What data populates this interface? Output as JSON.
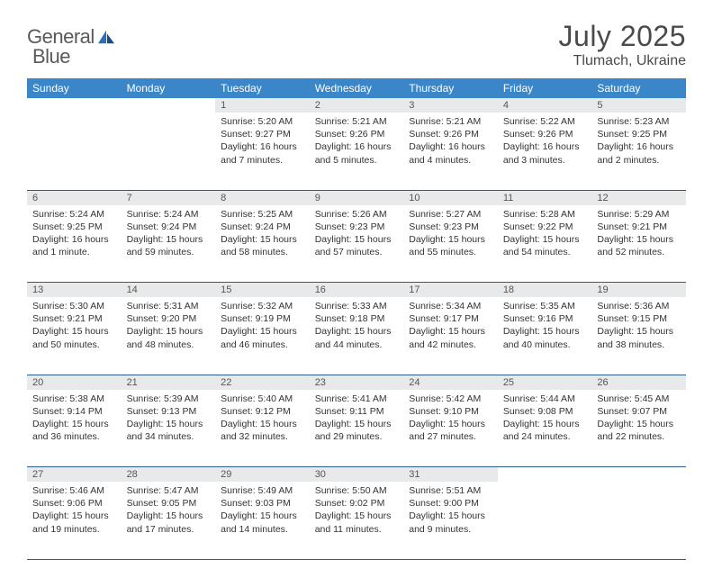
{
  "brand": {
    "word1": "General",
    "word2": "Blue"
  },
  "title": "July 2025",
  "location": "Tlumach, Ukraine",
  "colors": {
    "header_bg": "#3b86c8",
    "header_fg": "#ffffff",
    "daynum_bg": "#e8e9ea",
    "row_border": "#2b5e8e",
    "text": "#333333",
    "title_color": "#4a4a4a",
    "logo_gray": "#5a5a5a",
    "logo_blue": "#2b6fb5"
  },
  "typography": {
    "title_fontsize": 32,
    "location_fontsize": 16,
    "header_fontsize": 12,
    "cell_fontsize": 10.5,
    "daynum_fontsize": 11
  },
  "day_headers": [
    "Sunday",
    "Monday",
    "Tuesday",
    "Wednesday",
    "Thursday",
    "Friday",
    "Saturday"
  ],
  "weeks": [
    [
      null,
      null,
      null,
      {
        "n": "1",
        "sunrise": "Sunrise: 5:20 AM",
        "sunset": "Sunset: 9:27 PM",
        "daylight": "Daylight: 16 hours and 7 minutes."
      },
      {
        "n": "2",
        "sunrise": "Sunrise: 5:21 AM",
        "sunset": "Sunset: 9:26 PM",
        "daylight": "Daylight: 16 hours and 5 minutes."
      },
      {
        "n": "3",
        "sunrise": "Sunrise: 5:21 AM",
        "sunset": "Sunset: 9:26 PM",
        "daylight": "Daylight: 16 hours and 4 minutes."
      },
      {
        "n": "4",
        "sunrise": "Sunrise: 5:22 AM",
        "sunset": "Sunset: 9:26 PM",
        "daylight": "Daylight: 16 hours and 3 minutes."
      },
      {
        "n": "5",
        "sunrise": "Sunrise: 5:23 AM",
        "sunset": "Sunset: 9:25 PM",
        "daylight": "Daylight: 16 hours and 2 minutes."
      }
    ],
    [
      {
        "n": "6",
        "sunrise": "Sunrise: 5:24 AM",
        "sunset": "Sunset: 9:25 PM",
        "daylight": "Daylight: 16 hours and 1 minute."
      },
      {
        "n": "7",
        "sunrise": "Sunrise: 5:24 AM",
        "sunset": "Sunset: 9:24 PM",
        "daylight": "Daylight: 15 hours and 59 minutes."
      },
      {
        "n": "8",
        "sunrise": "Sunrise: 5:25 AM",
        "sunset": "Sunset: 9:24 PM",
        "daylight": "Daylight: 15 hours and 58 minutes."
      },
      {
        "n": "9",
        "sunrise": "Sunrise: 5:26 AM",
        "sunset": "Sunset: 9:23 PM",
        "daylight": "Daylight: 15 hours and 57 minutes."
      },
      {
        "n": "10",
        "sunrise": "Sunrise: 5:27 AM",
        "sunset": "Sunset: 9:23 PM",
        "daylight": "Daylight: 15 hours and 55 minutes."
      },
      {
        "n": "11",
        "sunrise": "Sunrise: 5:28 AM",
        "sunset": "Sunset: 9:22 PM",
        "daylight": "Daylight: 15 hours and 54 minutes."
      },
      {
        "n": "12",
        "sunrise": "Sunrise: 5:29 AM",
        "sunset": "Sunset: 9:21 PM",
        "daylight": "Daylight: 15 hours and 52 minutes."
      }
    ],
    [
      {
        "n": "13",
        "sunrise": "Sunrise: 5:30 AM",
        "sunset": "Sunset: 9:21 PM",
        "daylight": "Daylight: 15 hours and 50 minutes."
      },
      {
        "n": "14",
        "sunrise": "Sunrise: 5:31 AM",
        "sunset": "Sunset: 9:20 PM",
        "daylight": "Daylight: 15 hours and 48 minutes."
      },
      {
        "n": "15",
        "sunrise": "Sunrise: 5:32 AM",
        "sunset": "Sunset: 9:19 PM",
        "daylight": "Daylight: 15 hours and 46 minutes."
      },
      {
        "n": "16",
        "sunrise": "Sunrise: 5:33 AM",
        "sunset": "Sunset: 9:18 PM",
        "daylight": "Daylight: 15 hours and 44 minutes."
      },
      {
        "n": "17",
        "sunrise": "Sunrise: 5:34 AM",
        "sunset": "Sunset: 9:17 PM",
        "daylight": "Daylight: 15 hours and 42 minutes."
      },
      {
        "n": "18",
        "sunrise": "Sunrise: 5:35 AM",
        "sunset": "Sunset: 9:16 PM",
        "daylight": "Daylight: 15 hours and 40 minutes."
      },
      {
        "n": "19",
        "sunrise": "Sunrise: 5:36 AM",
        "sunset": "Sunset: 9:15 PM",
        "daylight": "Daylight: 15 hours and 38 minutes."
      }
    ],
    [
      {
        "n": "20",
        "sunrise": "Sunrise: 5:38 AM",
        "sunset": "Sunset: 9:14 PM",
        "daylight": "Daylight: 15 hours and 36 minutes."
      },
      {
        "n": "21",
        "sunrise": "Sunrise: 5:39 AM",
        "sunset": "Sunset: 9:13 PM",
        "daylight": "Daylight: 15 hours and 34 minutes."
      },
      {
        "n": "22",
        "sunrise": "Sunrise: 5:40 AM",
        "sunset": "Sunset: 9:12 PM",
        "daylight": "Daylight: 15 hours and 32 minutes."
      },
      {
        "n": "23",
        "sunrise": "Sunrise: 5:41 AM",
        "sunset": "Sunset: 9:11 PM",
        "daylight": "Daylight: 15 hours and 29 minutes."
      },
      {
        "n": "24",
        "sunrise": "Sunrise: 5:42 AM",
        "sunset": "Sunset: 9:10 PM",
        "daylight": "Daylight: 15 hours and 27 minutes."
      },
      {
        "n": "25",
        "sunrise": "Sunrise: 5:44 AM",
        "sunset": "Sunset: 9:08 PM",
        "daylight": "Daylight: 15 hours and 24 minutes."
      },
      {
        "n": "26",
        "sunrise": "Sunrise: 5:45 AM",
        "sunset": "Sunset: 9:07 PM",
        "daylight": "Daylight: 15 hours and 22 minutes."
      }
    ],
    [
      {
        "n": "27",
        "sunrise": "Sunrise: 5:46 AM",
        "sunset": "Sunset: 9:06 PM",
        "daylight": "Daylight: 15 hours and 19 minutes."
      },
      {
        "n": "28",
        "sunrise": "Sunrise: 5:47 AM",
        "sunset": "Sunset: 9:05 PM",
        "daylight": "Daylight: 15 hours and 17 minutes."
      },
      {
        "n": "29",
        "sunrise": "Sunrise: 5:49 AM",
        "sunset": "Sunset: 9:03 PM",
        "daylight": "Daylight: 15 hours and 14 minutes."
      },
      {
        "n": "30",
        "sunrise": "Sunrise: 5:50 AM",
        "sunset": "Sunset: 9:02 PM",
        "daylight": "Daylight: 15 hours and 11 minutes."
      },
      {
        "n": "31",
        "sunrise": "Sunrise: 5:51 AM",
        "sunset": "Sunset: 9:00 PM",
        "daylight": "Daylight: 15 hours and 9 minutes."
      },
      null,
      null
    ]
  ]
}
